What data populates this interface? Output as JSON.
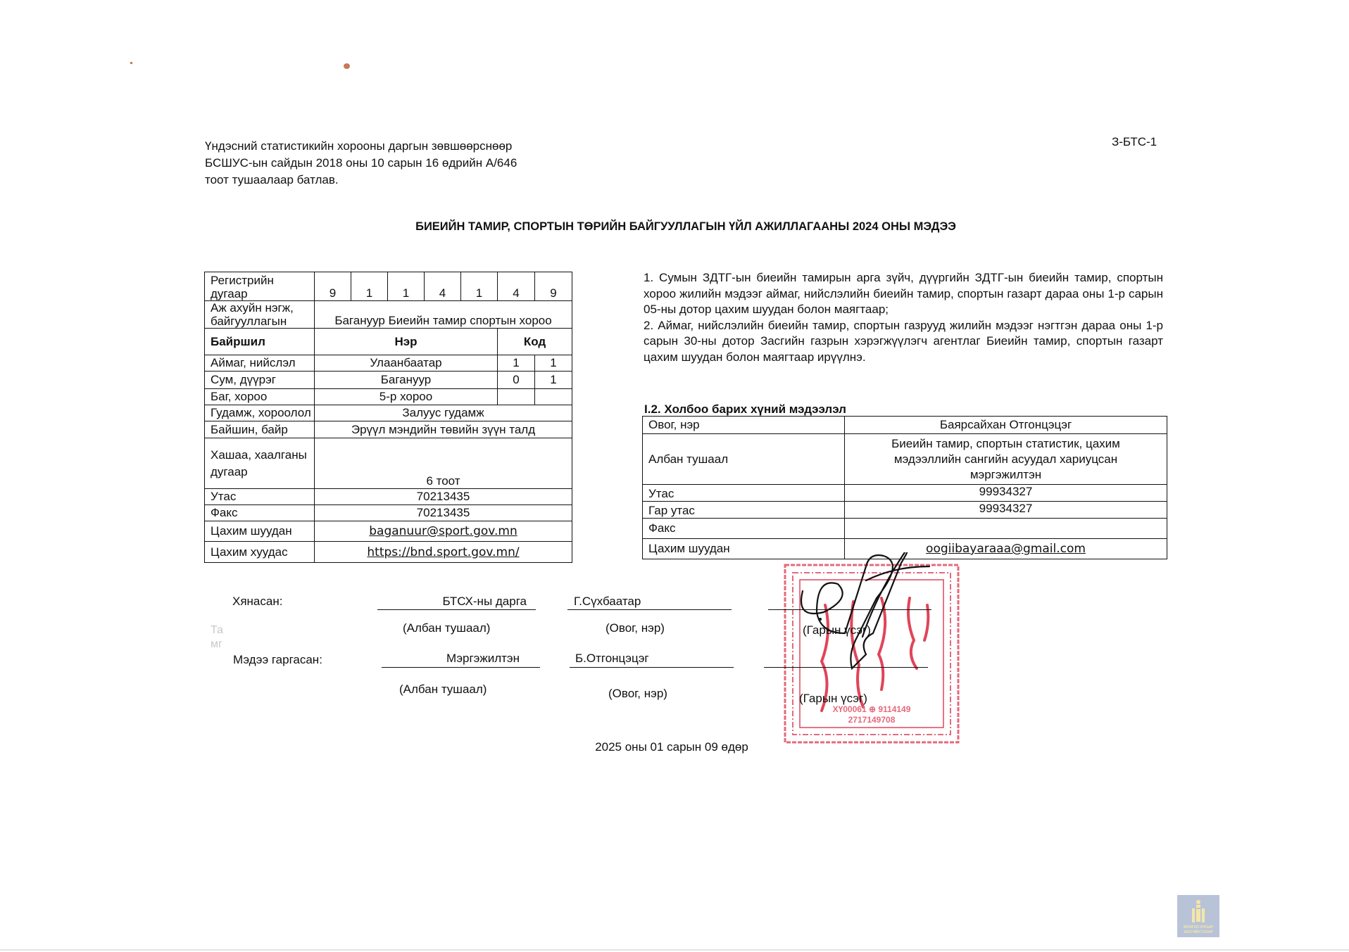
{
  "header": {
    "approval_lines": [
      "Үндэсний статистикийн хорооны даргын зөвшөөрснөөр",
      "БСШУС-ын сайдын 2018 оны 10 сарын 16 өдрийн А/646",
      "тоот тушаалаар батлав."
    ],
    "form_code": "З-БТС-1",
    "title": "БИЕИЙН ТАМИР, СПОРТЫН ТӨРИЙН БАЙГУУЛЛАГЫН ҮЙЛ АЖИЛЛАГААНЫ 2024 ОНЫ МЭДЭЭ"
  },
  "org_table": {
    "registry_label": "Регистрийн дугаар",
    "registry_digits": [
      "9",
      "1",
      "1",
      "4",
      "1",
      "4",
      "9"
    ],
    "unit_label": "Аж ахуйн нэгж, байгууллагын",
    "unit_value": "Багануур Биеийн тамир спортын хороо",
    "location_header": "Байршил",
    "name_header": "Нэр",
    "code_header": "Код",
    "rows": [
      {
        "label": "Аймаг, нийслэл",
        "value": "Улаанбаатар",
        "code": [
          "1",
          "1"
        ]
      },
      {
        "label": "Сум, дүүрэг",
        "value": "Багануур",
        "code": [
          "0",
          "1"
        ]
      },
      {
        "label": "Баг, хороо",
        "value": "5-р хороо",
        "code": [
          "",
          ""
        ]
      }
    ],
    "street_label": "Гудамж, хороолол",
    "street_value": "Залуус гудамж",
    "building_label": "Байшин, байр",
    "building_value": "Эрүүл мэндийн төвийн зүүн талд",
    "gate_label": "Хашаа, хаалганы дугаар",
    "gate_value": "6 тоот",
    "phone_label": "Утас",
    "phone_value": "70213435",
    "fax_label": "Факс",
    "fax_value": "70213435",
    "email_label": "Цахим шуудан",
    "email_value": "baganuur@sport.gov.mn",
    "web_label": "Цахим хуудас",
    "web_value": "https://bnd.sport.gov.mn/"
  },
  "instructions": [
    "1. Сумын ЗДТГ-ын биеийн тамирын арга зүйч, дүүргийн ЗДТГ-ын биеийн тамир, спортын хороо жилийн мэдээг аймаг, нийслэлийн биеийн тамир, спортын газарт дараа оны 1-р сарын 05-ны дотор цахим шуудан болон маягтаар;",
    "2. Аймаг, нийслэлийн биеийн тамир, спортын газрууд жилийн мэдээг нэгтгэн дараа оны 1-р сарын 30-ны дотор Засгийн газрын хэрэгжүүлэгч агентлаг Биеийн тамир, спортын газарт  цахим шуудан болон маягтаар ирүүлнэ."
  ],
  "contact": {
    "heading": "I.2. Холбоо барих хүний мэдээлэл",
    "rows": [
      {
        "label": "Овог, нэр",
        "value": "Баярсайхан Отгонцэцэг"
      },
      {
        "label": "Албан тушаал",
        "value": "Биеийн тамир, спортын статистик, цахим мэдээллийн сангийн асуудал хариуцсан мэргэжилтэн"
      },
      {
        "label": "Утас",
        "value": "99934327"
      },
      {
        "label": "Гар утас",
        "value": "99934327"
      },
      {
        "label": "Факс",
        "value": ""
      },
      {
        "label": "Цахим шуудан",
        "value": "oogiibayaraaa@gmail.com"
      }
    ]
  },
  "signatures": {
    "reviewed_label": "Хянасан:",
    "reviewer_position": "БТСХ-ны дарга",
    "reviewer_name": "Г.Сүхбаатар",
    "submitted_label": "Мэдээ гаргасан:",
    "submitter_position": "Мэргэжилтэн",
    "submitter_name": "Б.Отгонцэцэг",
    "position_caption": "(Албан тушаал)",
    "name_caption": "(Овог, нэр)",
    "signature_caption": "(Гарын үсэг)",
    "faint_text": [
      "Та",
      "мг"
    ]
  },
  "date": "2025 оны 01 сарын 09 өдөр",
  "stamp": {
    "color": "#e0455a",
    "lines": [
      "ХҮ00061 ⊕ 9114149",
      "2717149708"
    ]
  },
  "logo": {
    "lines": [
      "МОНГОЛ УЛСЫН",
      "ЗАСГИЙН ГАЗАР"
    ],
    "bg": "#b9c3d8",
    "fg": "#f3e6a8"
  }
}
